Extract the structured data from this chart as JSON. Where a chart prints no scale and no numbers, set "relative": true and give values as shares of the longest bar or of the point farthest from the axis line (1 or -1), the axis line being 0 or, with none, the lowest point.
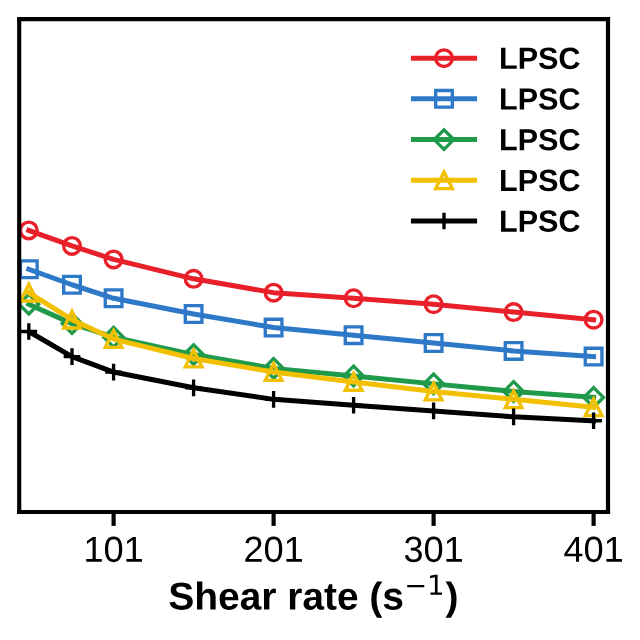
{
  "chart_data": {
    "type": "line",
    "xlabel": "Shear rate (s$^{−1}$)",
    "relative": true,
    "x": [
      48,
      75,
      101,
      151,
      201,
      251,
      301,
      351,
      401
    ],
    "xlim": [
      42,
      410
    ],
    "xticks": [
      101,
      201,
      301,
      401
    ],
    "legend": "top right",
    "grid": false,
    "line_style": "solid",
    "series": [
      {
        "name": "LPSC",
        "color": "#e8202a",
        "marker": "circle",
        "values": [
          1,
          0.945,
          0.897,
          0.828,
          0.779,
          0.759,
          0.738,
          0.71,
          0.683
        ]
      },
      {
        "name": "LPSC",
        "color": "#2e78c8",
        "marker": "square",
        "values": [
          0.862,
          0.807,
          0.759,
          0.703,
          0.655,
          0.628,
          0.6,
          0.572,
          0.552
        ]
      },
      {
        "name": "LPSC",
        "color": "#1f9a4a",
        "marker": "diamond",
        "values": [
          0.738,
          0.669,
          0.621,
          0.559,
          0.51,
          0.483,
          0.455,
          0.428,
          0.407
        ]
      },
      {
        "name": "LPSC",
        "color": "#f2c000",
        "marker": "triangle",
        "values": [
          0.779,
          0.683,
          0.614,
          0.545,
          0.497,
          0.462,
          0.428,
          0.4,
          0.372
        ]
      },
      {
        "name": "LPSC",
        "color": "#000000",
        "marker": "cross",
        "values": [
          0.641,
          0.552,
          0.497,
          0.441,
          0.4,
          0.379,
          0.359,
          0.338,
          0.324
        ]
      }
    ]
  }
}
